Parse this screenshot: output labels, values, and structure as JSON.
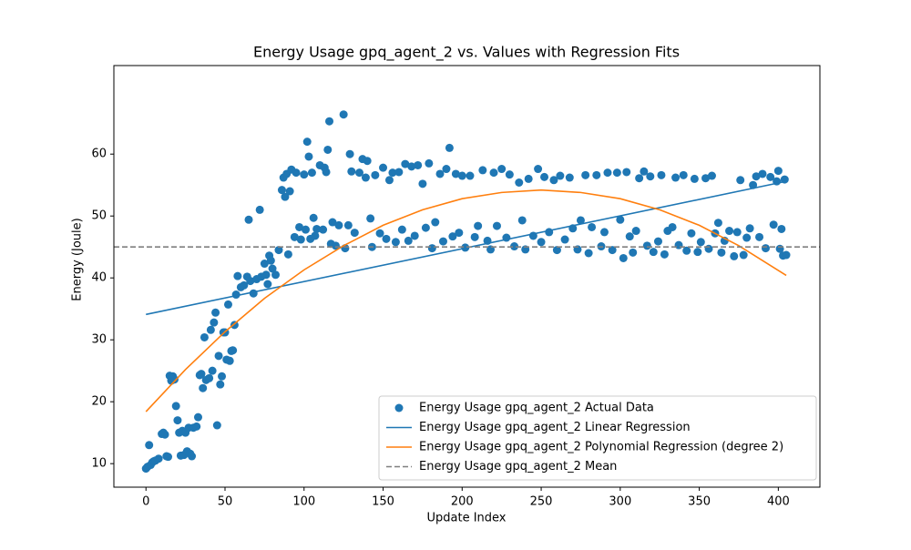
{
  "chart_data": {
    "type": "scatter",
    "title": "Energy Usage gpq_agent_2 vs. Values with Regression Fits",
    "x_label": "Update Index",
    "y_label": "Energy (Joule)",
    "xlim": [
      -20.3,
      426.3
    ],
    "ylim": [
      6.2,
      74.3
    ],
    "xticks": [
      0,
      50,
      100,
      150,
      200,
      250,
      300,
      350,
      400
    ],
    "yticks": [
      10,
      20,
      30,
      40,
      50,
      60
    ],
    "legend": "lower right",
    "series": [
      {
        "name": "Energy Usage gpq_agent_2 Actual Data",
        "color": "#1f77b4",
        "kind": "scatter",
        "x": [
          0,
          1,
          2,
          3,
          4,
          5,
          6,
          8,
          10,
          11,
          12,
          13,
          14,
          15,
          16,
          17,
          18,
          19,
          20,
          21,
          22,
          23,
          24,
          25,
          26,
          27,
          28,
          29,
          30,
          32,
          33,
          34,
          35,
          36,
          37,
          38,
          40,
          41,
          42,
          43,
          44,
          45,
          46,
          47,
          48,
          49,
          50,
          51,
          52,
          53,
          54,
          55,
          56,
          57,
          58,
          60,
          62,
          64,
          65,
          66,
          68,
          70,
          72,
          73,
          75,
          76,
          77,
          78,
          79,
          80,
          82,
          84,
          86,
          87,
          88,
          89,
          90,
          91,
          92,
          94,
          95,
          97,
          98,
          100,
          101,
          102,
          103,
          104,
          105,
          106,
          107,
          108,
          110,
          112,
          113,
          114,
          115,
          116,
          117,
          118,
          120,
          122,
          125,
          126,
          128,
          129,
          130,
          132,
          135,
          137,
          139,
          140,
          142,
          143,
          145,
          148,
          150,
          152,
          154,
          156,
          158,
          160,
          162,
          164,
          166,
          168,
          170,
          172,
          175,
          177,
          179,
          181,
          183,
          186,
          188,
          190,
          192,
          194,
          196,
          198,
          200,
          202,
          205,
          208,
          210,
          213,
          216,
          218,
          220,
          222,
          225,
          228,
          230,
          233,
          236,
          238,
          240,
          242,
          245,
          248,
          250,
          252,
          255,
          258,
          260,
          262,
          265,
          268,
          270,
          273,
          275,
          278,
          280,
          282,
          285,
          288,
          290,
          292,
          295,
          298,
          300,
          302,
          304,
          306,
          308,
          310,
          312,
          315,
          317,
          319,
          321,
          324,
          326,
          328,
          330,
          333,
          335,
          337,
          340,
          342,
          345,
          347,
          349,
          351,
          354,
          356,
          358,
          360,
          362,
          364,
          366,
          369,
          372,
          374,
          376,
          378,
          380,
          382,
          384,
          386,
          388,
          390,
          392,
          395,
          397,
          399,
          400,
          401,
          402,
          403,
          404,
          405
        ],
        "values": [
          9.2,
          9.5,
          13,
          9.8,
          10.2,
          10.4,
          10.5,
          10.8,
          14.8,
          15,
          14.7,
          11.2,
          11.1,
          24.2,
          23.4,
          24.1,
          23.6,
          19.3,
          17,
          15,
          11.3,
          15.3,
          11.4,
          15,
          12,
          15.8,
          11.6,
          11.2,
          15.8,
          16,
          17.5,
          24.3,
          24.5,
          22.2,
          30.4,
          23.5,
          23.8,
          31.6,
          25,
          32.8,
          34.4,
          16.2,
          27.4,
          22.8,
          24.1,
          31.2,
          31.2,
          26.8,
          35.7,
          26.6,
          28.2,
          28.3,
          32.4,
          37.3,
          40.3,
          38.5,
          38.8,
          40.2,
          49.4,
          39.5,
          37.5,
          39.8,
          51,
          40.2,
          42.3,
          40.5,
          39,
          43.6,
          42.8,
          41.5,
          40.5,
          44.5,
          54.2,
          56.2,
          53.1,
          56.8,
          43.8,
          54,
          57.5,
          46.6,
          57,
          48.2,
          46.2,
          56.7,
          47.8,
          62,
          59.6,
          46.3,
          57,
          49.7,
          46.8,
          47.9,
          58.2,
          47.8,
          57.8,
          57.1,
          60.7,
          65.3,
          45.5,
          49,
          45.2,
          48.5,
          66.4,
          44.8,
          48.5,
          60,
          57.2,
          47.3,
          57,
          59.2,
          56.2,
          58.9,
          49.6,
          45,
          56.6,
          47.2,
          57.8,
          46.3,
          55.8,
          57,
          45.8,
          57.1,
          47.8,
          58.4,
          46,
          58,
          46.8,
          58.2,
          55.2,
          48.1,
          58.5,
          44.8,
          49,
          56.8,
          45.9,
          57.6,
          61,
          46.7,
          56.8,
          47.3,
          56.5,
          44.9,
          56.5,
          46.6,
          48.4,
          57.4,
          46,
          44.6,
          57,
          48.4,
          57.6,
          46.5,
          56.7,
          45.1,
          55.4,
          49.3,
          44.6,
          56,
          46.8,
          57.6,
          45.8,
          56.3,
          47.4,
          55.8,
          44.5,
          56.5,
          46.2,
          56.2,
          48,
          44.6,
          49.3,
          56.6,
          44,
          48.2,
          56.6,
          45.1,
          47.4,
          57,
          44.5,
          57,
          49.4,
          43.2,
          57.1,
          46.7,
          44.1,
          47.6,
          56.1,
          57.2,
          45.2,
          56.4,
          44.2,
          45.9,
          56.6,
          43.8,
          47.6,
          48.2,
          56.2,
          45.3,
          56.6,
          44.4,
          47.2,
          56,
          44.2,
          45.8,
          56.1,
          44.7,
          56.5,
          47.2,
          48.9,
          44.1,
          46,
          47.6,
          43.5,
          47.4,
          55.8,
          43.7,
          46.5,
          48,
          55,
          56.4,
          46.6,
          56.8,
          44.8,
          56.3,
          48.6,
          55.6,
          57.3,
          44.7,
          47.9,
          43.6,
          55.9,
          43.7
        ]
      },
      {
        "name": "Energy Usage gpq_agent_2 Linear Regression",
        "color": "#1f77b4",
        "kind": "line",
        "x": [
          0,
          405
        ],
        "values": [
          34.1,
          55.6
        ]
      },
      {
        "name": "Energy Usage gpq_agent_2 Polynomial Regression (degree 2)",
        "color": "#ff7f0e",
        "kind": "line",
        "x": [
          0,
          25,
          50,
          75,
          100,
          125,
          150,
          175,
          200,
          225,
          250,
          275,
          300,
          325,
          350,
          375,
          405
        ],
        "values": [
          18.4,
          25.2,
          31.3,
          36.7,
          41.3,
          45.2,
          48.5,
          51.0,
          52.8,
          53.8,
          54.2,
          53.8,
          52.8,
          51.0,
          48.5,
          45.2,
          40.4
        ]
      },
      {
        "name": "Energy Usage gpq_agent_2 Mean",
        "color": "#7f7f7f",
        "kind": "hline",
        "dash": true,
        "values": [
          45.0
        ]
      }
    ]
  }
}
